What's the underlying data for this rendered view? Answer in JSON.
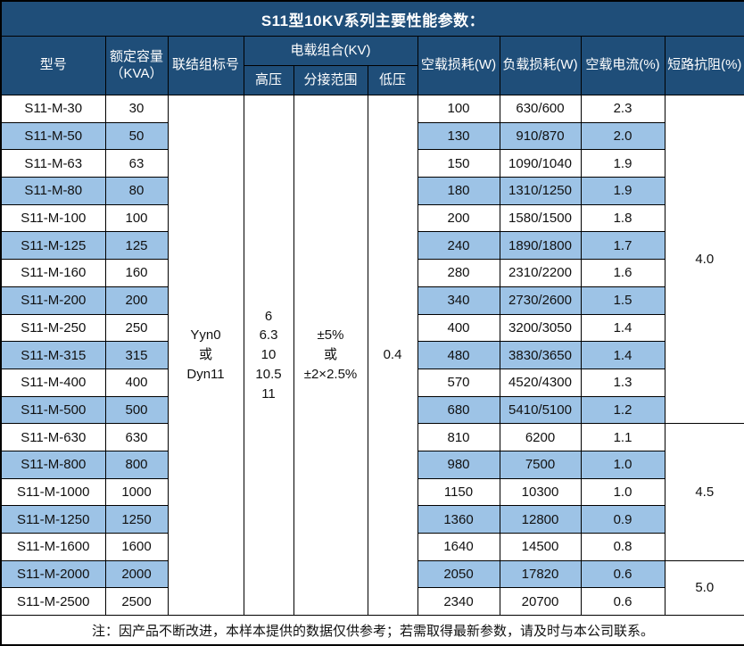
{
  "title": "S11型10KV系列主要性能参数：",
  "colors": {
    "header_bg": "#1F4E79",
    "stripe_bg": "#9DC3E6",
    "border": "#000000",
    "header_text": "#FFFFFF",
    "body_text": "#111111"
  },
  "header": {
    "model": "型号",
    "capacity_line1": "额定容量",
    "capacity_line2": "（KVA）",
    "connection": "联结组标号",
    "voltage_group": "电载组合(KV)",
    "hv": "高压",
    "tap_range": "分接范围",
    "lv": "低压",
    "no_load_loss": "空载损耗(W)",
    "load_loss": "负载损耗(W)",
    "no_load_current": "空载电流(%)",
    "impedance": "短路抗阻(%)"
  },
  "merged": {
    "connection_lines": [
      "Yyn0",
      "或",
      "Dyn11"
    ],
    "hv_lines": [
      "6",
      "6.3",
      "10",
      "10.5",
      "11"
    ],
    "tap_lines": [
      "±5%",
      "或",
      "±2×2.5%"
    ],
    "lv_lines": [
      "0.4"
    ]
  },
  "rows": [
    {
      "model": "S11-M-30",
      "kva": "30",
      "no_load": "100",
      "load": "630/600",
      "current": "2.3"
    },
    {
      "model": "S11-M-50",
      "kva": "50",
      "no_load": "130",
      "load": "910/870",
      "current": "2.0"
    },
    {
      "model": "S11-M-63",
      "kva": "63",
      "no_load": "150",
      "load": "1090/1040",
      "current": "1.9"
    },
    {
      "model": "S11-M-80",
      "kva": "80",
      "no_load": "180",
      "load": "1310/1250",
      "current": "1.9"
    },
    {
      "model": "S11-M-100",
      "kva": "100",
      "no_load": "200",
      "load": "1580/1500",
      "current": "1.8"
    },
    {
      "model": "S11-M-125",
      "kva": "125",
      "no_load": "240",
      "load": "1890/1800",
      "current": "1.7"
    },
    {
      "model": "S11-M-160",
      "kva": "160",
      "no_load": "280",
      "load": "2310/2200",
      "current": "1.6"
    },
    {
      "model": "S11-M-200",
      "kva": "200",
      "no_load": "340",
      "load": "2730/2600",
      "current": "1.5"
    },
    {
      "model": "S11-M-250",
      "kva": "250",
      "no_load": "400",
      "load": "3200/3050",
      "current": "1.4"
    },
    {
      "model": "S11-M-315",
      "kva": "315",
      "no_load": "480",
      "load": "3830/3650",
      "current": "1.4"
    },
    {
      "model": "S11-M-400",
      "kva": "400",
      "no_load": "570",
      "load": "4520/4300",
      "current": "1.3"
    },
    {
      "model": "S11-M-500",
      "kva": "500",
      "no_load": "680",
      "load": "5410/5100",
      "current": "1.2"
    },
    {
      "model": "S11-M-630",
      "kva": "630",
      "no_load": "810",
      "load": "6200",
      "current": "1.1"
    },
    {
      "model": "S11-M-800",
      "kva": "800",
      "no_load": "980",
      "load": "7500",
      "current": "1.0"
    },
    {
      "model": "S11-M-1000",
      "kva": "1000",
      "no_load": "1150",
      "load": "10300",
      "current": "1.0"
    },
    {
      "model": "S11-M-1250",
      "kva": "1250",
      "no_load": "1360",
      "load": "12800",
      "current": "0.9"
    },
    {
      "model": "S11-M-1600",
      "kva": "1600",
      "no_load": "1640",
      "load": "14500",
      "current": "0.8"
    },
    {
      "model": "S11-M-2000",
      "kva": "2000",
      "no_load": "2050",
      "load": "17820",
      "current": "0.6"
    },
    {
      "model": "S11-M-2500",
      "kva": "2500",
      "no_load": "2340",
      "load": "20700",
      "current": "0.6"
    }
  ],
  "impedance_groups": [
    {
      "value": "4.0",
      "span": 12
    },
    {
      "value": "4.5",
      "span": 5
    },
    {
      "value": "5.0",
      "span": 2
    }
  ],
  "footer_note": "注：因产品不断改进，本样本提供的数据仅供参考；若需取得最新参数，请及时与本公司联系。"
}
